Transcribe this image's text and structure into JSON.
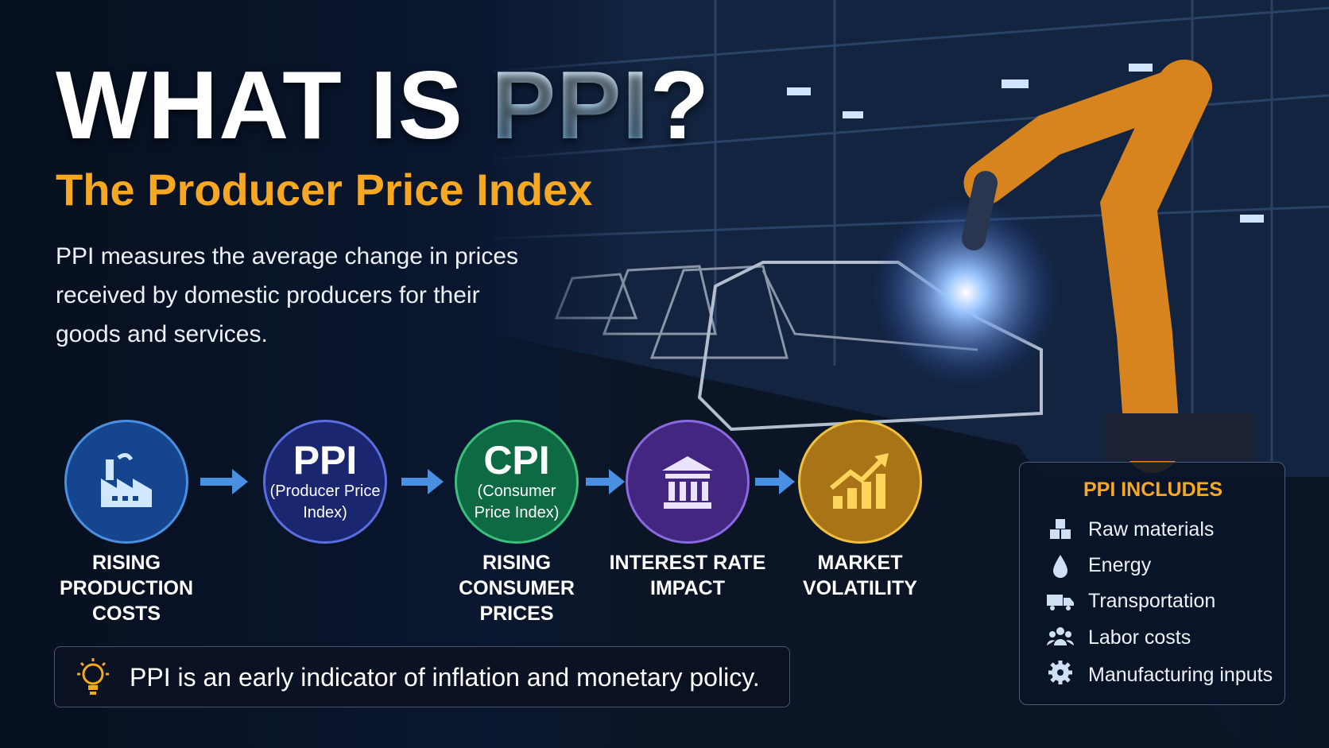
{
  "title": {
    "prefix": "WHAT IS",
    "highlight": "PPI",
    "suffix": "?"
  },
  "subtitle": "The Producer Price Index",
  "description": "PPI measures the average change in prices received by domestic producers for their goods and services.",
  "flow": [
    {
      "label": "RISING PRODUCTION COSTS"
    },
    {
      "heading": "PPI",
      "subheading": "(Producer Price Index)"
    },
    {
      "heading": "CPI",
      "subheading": "(Consumer Price Index)",
      "label": "RISING CONSUMER PRICES"
    },
    {
      "label": "INTEREST RATE IMPACT"
    },
    {
      "label": "MARKET VOLATILITY"
    }
  ],
  "note": "PPI is an early indicator of inflation and monetary policy.",
  "includes": {
    "title": "PPI INCLUDES",
    "items": [
      "Raw materials",
      "Energy",
      "Transportation",
      "Labor costs",
      "Manufacturing inputs"
    ]
  }
}
